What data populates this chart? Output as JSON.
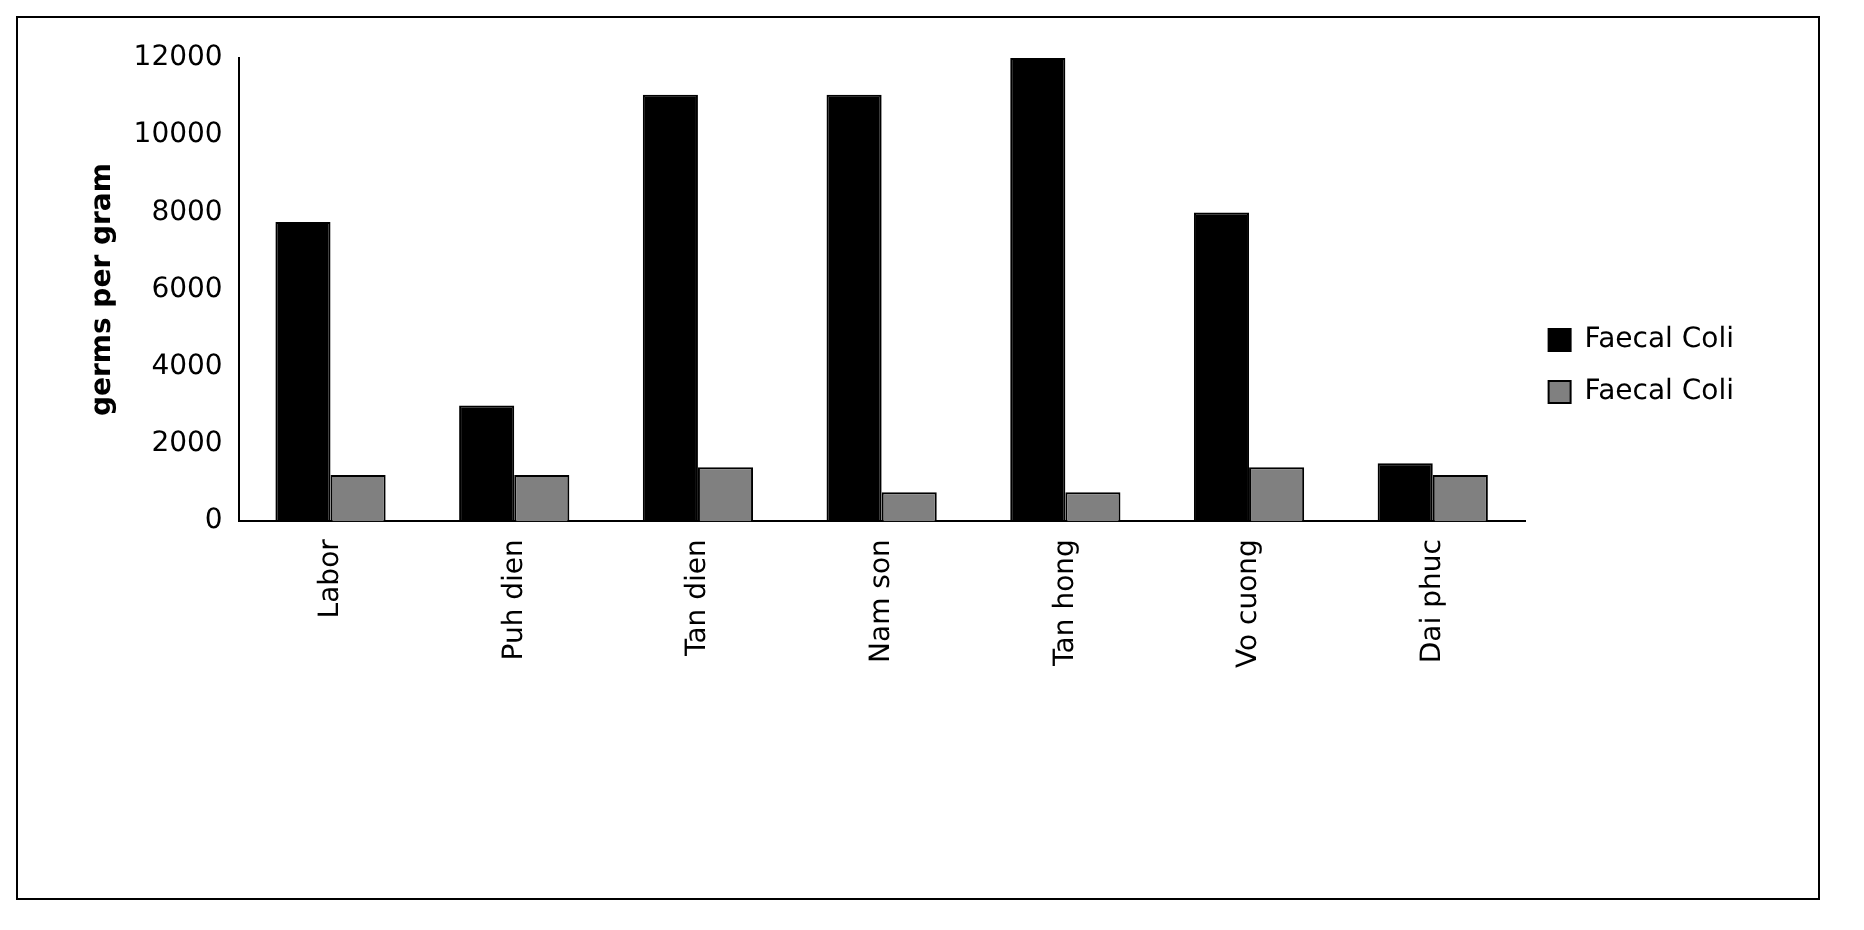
{
  "chart_data": {
    "type": "bar",
    "ylabel": "germs per gram",
    "categories": [
      "Labor",
      "Puh dien",
      "Tan dien",
      "Nam son",
      "Tan hong",
      "Vo cuong",
      "Dai phuc"
    ],
    "series": [
      {
        "name": "Faecal Coli",
        "color": "#000000",
        "values": [
          7750,
          3000,
          11050,
          11050,
          12000,
          8000,
          1500
        ]
      },
      {
        "name": "Faecal Coli",
        "color": "#808080",
        "values": [
          1200,
          1200,
          1400,
          750,
          750,
          1400,
          1200
        ]
      }
    ],
    "ylim": [
      0,
      12000
    ],
    "yticks": [
      0,
      2000,
      4000,
      6000,
      8000,
      10000,
      12000
    ],
    "grid": false,
    "legend": "right"
  }
}
